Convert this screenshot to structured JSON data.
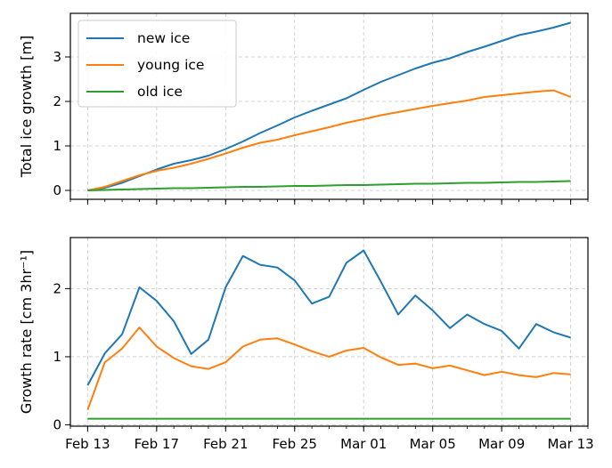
{
  "chart_data": [
    {
      "type": "line",
      "ylabel": "Total ice growth [m]",
      "xlabel": "",
      "ylim": [
        -0.2,
        3.98
      ],
      "yticks": [
        0,
        1,
        2,
        3
      ],
      "grid": true,
      "legend_position": "top-left",
      "x": [
        "2023-02-13",
        "2023-02-14",
        "2023-02-15",
        "2023-02-16",
        "2023-02-17",
        "2023-02-18",
        "2023-02-19",
        "2023-02-20",
        "2023-02-21",
        "2023-02-22",
        "2023-02-23",
        "2023-02-24",
        "2023-02-25",
        "2023-02-26",
        "2023-02-27",
        "2023-02-28",
        "2023-03-01",
        "2023-03-02",
        "2023-03-03",
        "2023-03-04",
        "2023-03-05",
        "2023-03-06",
        "2023-03-07",
        "2023-03-08",
        "2023-03-09",
        "2023-03-10",
        "2023-03-11",
        "2023-03-12",
        "2023-03-13"
      ],
      "series": [
        {
          "name": "new ice",
          "color": "#1f77b4",
          "values": [
            0.0,
            0.06,
            0.17,
            0.32,
            0.47,
            0.6,
            0.68,
            0.78,
            0.93,
            1.1,
            1.29,
            1.46,
            1.64,
            1.79,
            1.93,
            2.07,
            2.26,
            2.44,
            2.59,
            2.74,
            2.87,
            2.97,
            3.11,
            3.23,
            3.36,
            3.49,
            3.57,
            3.66,
            3.77
          ]
        },
        {
          "name": "young ice",
          "color": "#ff7f0e",
          "values": [
            0.0,
            0.08,
            0.21,
            0.34,
            0.44,
            0.51,
            0.6,
            0.71,
            0.83,
            0.96,
            1.07,
            1.14,
            1.24,
            1.33,
            1.42,
            1.52,
            1.6,
            1.69,
            1.76,
            1.83,
            1.9,
            1.96,
            2.02,
            2.1,
            2.14,
            2.18,
            2.22,
            2.25,
            2.1
          ]
        },
        {
          "name": "old ice",
          "color": "#2ca02c",
          "values": [
            0.0,
            0.01,
            0.02,
            0.03,
            0.04,
            0.05,
            0.05,
            0.06,
            0.07,
            0.08,
            0.08,
            0.09,
            0.1,
            0.1,
            0.11,
            0.12,
            0.12,
            0.13,
            0.14,
            0.15,
            0.15,
            0.16,
            0.17,
            0.17,
            0.18,
            0.19,
            0.19,
            0.2,
            0.21
          ]
        }
      ]
    },
    {
      "type": "line",
      "ylabel": "Growth rate [cm 3hr⁻¹]",
      "xlabel": "",
      "ylim": [
        -0.02,
        2.75
      ],
      "yticks": [
        0,
        1,
        2
      ],
      "grid": true,
      "x": [
        "2023-02-13",
        "2023-02-14",
        "2023-02-15",
        "2023-02-16",
        "2023-02-17",
        "2023-02-18",
        "2023-02-19",
        "2023-02-20",
        "2023-02-21",
        "2023-02-22",
        "2023-02-23",
        "2023-02-24",
        "2023-02-25",
        "2023-02-26",
        "2023-02-27",
        "2023-02-28",
        "2023-03-01",
        "2023-03-02",
        "2023-03-03",
        "2023-03-04",
        "2023-03-05",
        "2023-03-06",
        "2023-03-07",
        "2023-03-08",
        "2023-03-09",
        "2023-03-10",
        "2023-03-11",
        "2023-03-12",
        "2023-03-13"
      ],
      "series": [
        {
          "name": "new ice",
          "color": "#1f77b4",
          "values": [
            0.58,
            1.05,
            1.33,
            2.02,
            1.82,
            1.52,
            1.04,
            1.25,
            2.02,
            2.48,
            2.35,
            2.31,
            2.12,
            1.78,
            1.88,
            2.38,
            2.56,
            2.1,
            1.62,
            1.9,
            1.68,
            1.42,
            1.62,
            1.48,
            1.38,
            1.12,
            1.48,
            1.36,
            1.28
          ]
        },
        {
          "name": "young ice",
          "color": "#ff7f0e",
          "values": [
            0.22,
            0.92,
            1.12,
            1.43,
            1.15,
            0.98,
            0.86,
            0.82,
            0.92,
            1.15,
            1.25,
            1.27,
            1.18,
            1.08,
            1.0,
            1.09,
            1.13,
            0.99,
            0.88,
            0.9,
            0.83,
            0.87,
            0.8,
            0.73,
            0.78,
            0.73,
            0.7,
            0.76,
            0.74
          ]
        },
        {
          "name": "old ice",
          "color": "#2ca02c",
          "values": [
            0.09,
            0.09,
            0.09,
            0.09,
            0.09,
            0.09,
            0.09,
            0.09,
            0.09,
            0.09,
            0.09,
            0.09,
            0.09,
            0.09,
            0.09,
            0.09,
            0.09,
            0.09,
            0.09,
            0.09,
            0.09,
            0.09,
            0.09,
            0.09,
            0.09,
            0.09,
            0.09,
            0.09,
            0.09
          ]
        }
      ]
    }
  ],
  "xaxis": {
    "tick_dates": [
      "2023-02-13",
      "2023-02-17",
      "2023-02-21",
      "2023-02-25",
      "2023-03-01",
      "2023-03-05",
      "2023-03-09",
      "2023-03-13"
    ],
    "tick_labels": [
      "Feb 13",
      "Feb 17",
      "Feb 21",
      "Feb 25",
      "Mar 01",
      "Mar 05",
      "Mar 09",
      "Mar 13"
    ],
    "xlim": [
      "2023-02-12",
      "2023-03-14"
    ]
  }
}
